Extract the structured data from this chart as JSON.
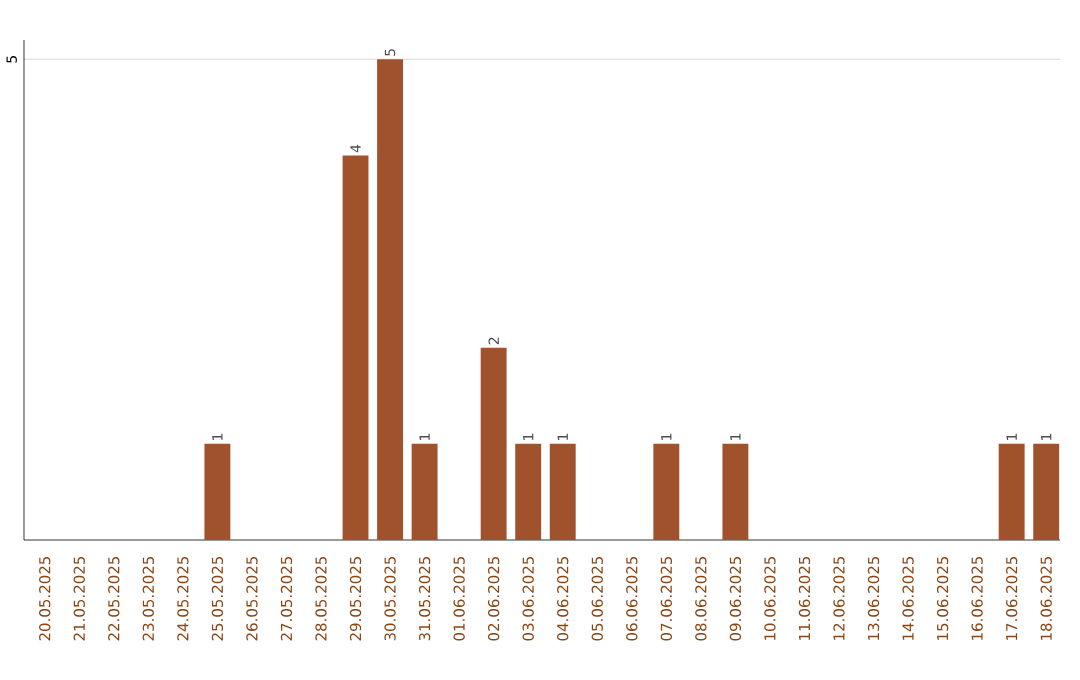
{
  "chart_data": {
    "type": "bar",
    "categories": [
      "20.05.2025",
      "21.05.2025",
      "22.05.2025",
      "23.05.2025",
      "24.05.2025",
      "25.05.2025",
      "26.05.2025",
      "27.05.2025",
      "28.05.2025",
      "29.05.2025",
      "30.05.2025",
      "31.05.2025",
      "01.06.2025",
      "02.06.2025",
      "03.06.2025",
      "04.06.2025",
      "05.06.2025",
      "06.06.2025",
      "07.06.2025",
      "08.06.2025",
      "09.06.2025",
      "10.06.2025",
      "11.06.2025",
      "12.06.2025",
      "13.06.2025",
      "14.06.2025",
      "15.06.2025",
      "16.06.2025",
      "17.06.2025",
      "18.06.2025"
    ],
    "values": [
      0,
      0,
      0,
      0,
      0,
      1,
      0,
      0,
      0,
      4,
      5,
      1,
      0,
      2,
      1,
      1,
      0,
      0,
      1,
      0,
      1,
      0,
      0,
      0,
      0,
      0,
      0,
      0,
      1,
      1
    ],
    "color": "#a0522d",
    "value_labels": [
      null,
      null,
      null,
      null,
      null,
      "1",
      null,
      null,
      null,
      "4",
      "5",
      "1",
      null,
      "2",
      "1",
      "1",
      null,
      null,
      "1",
      null,
      "1",
      null,
      null,
      null,
      null,
      null,
      null,
      null,
      "1",
      "1"
    ],
    "ylim": [
      0,
      5.2
    ],
    "yticks": [
      5
    ],
    "grid": "y"
  }
}
